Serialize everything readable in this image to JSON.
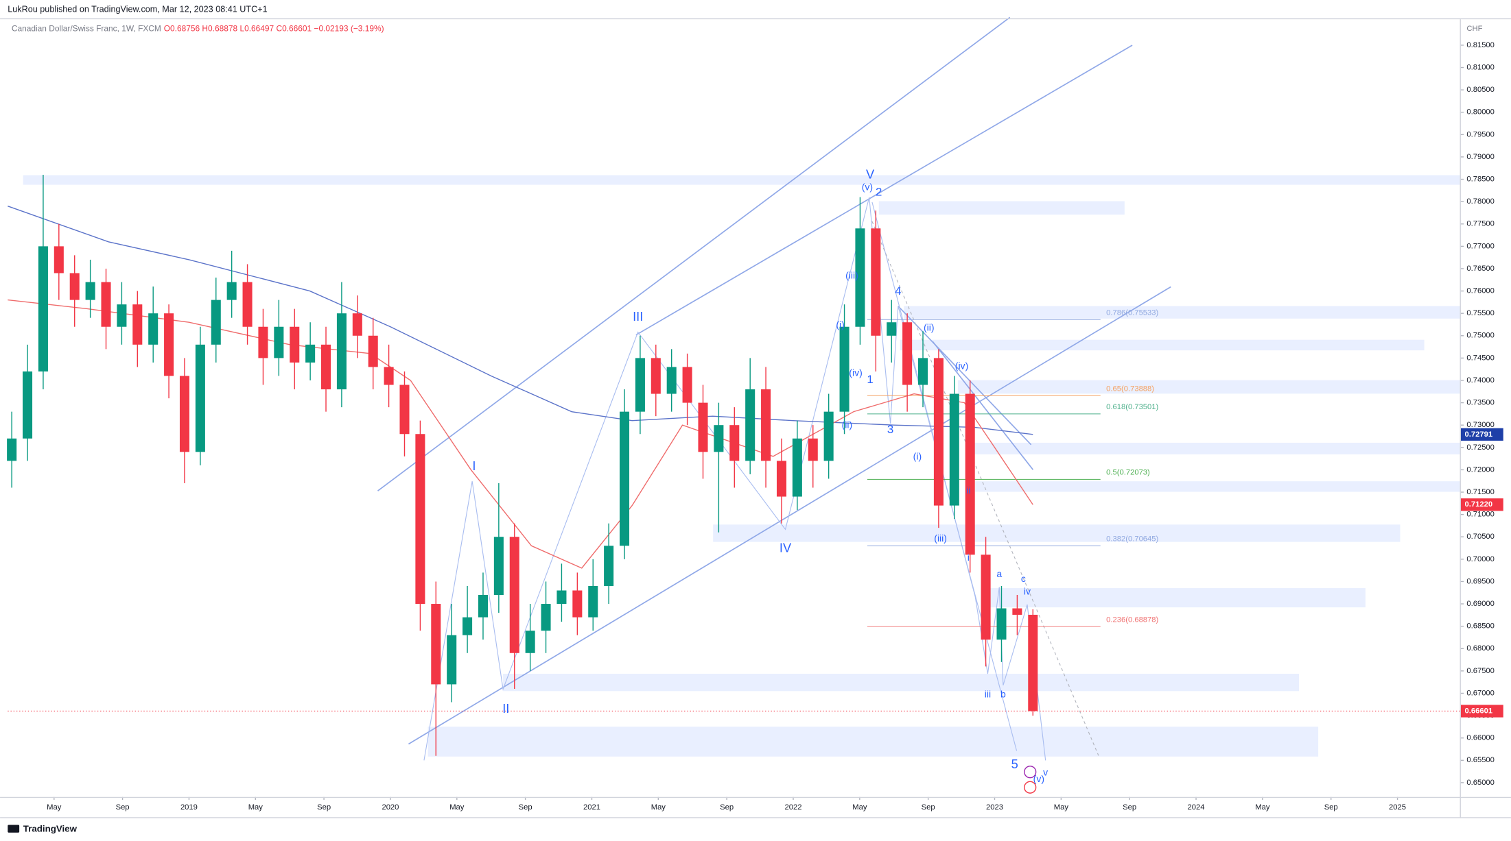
{
  "header": {
    "publisher": "LukRou published on TradingView.com, Mar 12, 2023 08:41 UTC+1",
    "symbol": "Canadian Dollar/Swiss Franc, 1W, FXCM",
    "ohlc": "O0.68756 H0.68878 L0.66497 C0.66601 −0.02193 (−3.19%)",
    "branding": "TradingView"
  },
  "chart_data": {
    "type": "candlestick",
    "up_color": "#089981",
    "down_color": "#f23645",
    "y_unit": "CHF",
    "x": [
      2018.12,
      2018.198,
      2018.276,
      2018.354,
      2018.432,
      2018.51,
      2018.588,
      2018.666,
      2018.744,
      2018.822,
      2018.9,
      2018.978,
      2019.056,
      2019.134,
      2019.212,
      2019.29,
      2019.368,
      2019.446,
      2019.524,
      2019.602,
      2019.68,
      2019.758,
      2019.836,
      2019.914,
      2019.992,
      2020.07,
      2020.148,
      2020.226,
      2020.304,
      2020.382,
      2020.46,
      2020.538,
      2020.616,
      2020.694,
      2020.772,
      2020.85,
      2020.928,
      2021.006,
      2021.084,
      2021.162,
      2021.24,
      2021.318,
      2021.396,
      2021.474,
      2021.552,
      2021.63,
      2021.708,
      2021.786,
      2021.864,
      2021.942,
      2022.02,
      2022.098,
      2022.176,
      2022.254,
      2022.332,
      2022.41,
      2022.488,
      2022.566,
      2022.644,
      2022.722,
      2022.8,
      2022.878,
      2022.956,
      2023.034,
      2023.112,
      2023.19
    ],
    "open": [
      0.722,
      0.727,
      0.742,
      0.77,
      0.764,
      0.758,
      0.762,
      0.752,
      0.757,
      0.748,
      0.755,
      0.741,
      0.724,
      0.748,
      0.758,
      0.762,
      0.752,
      0.745,
      0.752,
      0.744,
      0.748,
      0.738,
      0.755,
      0.75,
      0.743,
      0.739,
      0.728,
      0.69,
      0.672,
      0.683,
      0.687,
      0.692,
      0.705,
      0.679,
      0.684,
      0.69,
      0.693,
      0.687,
      0.694,
      0.703,
      0.733,
      0.745,
      0.737,
      0.743,
      0.735,
      0.724,
      0.73,
      0.722,
      0.738,
      0.722,
      0.714,
      0.727,
      0.722,
      0.733,
      0.752,
      0.774,
      0.75,
      0.753,
      0.739,
      0.745,
      0.712,
      0.737,
      0.701,
      0.682,
      0.689,
      0.68756
    ],
    "high": [
      0.733,
      0.748,
      0.786,
      0.775,
      0.768,
      0.767,
      0.765,
      0.762,
      0.76,
      0.761,
      0.757,
      0.745,
      0.752,
      0.763,
      0.769,
      0.766,
      0.756,
      0.758,
      0.756,
      0.753,
      0.752,
      0.762,
      0.759,
      0.754,
      0.748,
      0.742,
      0.731,
      0.695,
      0.69,
      0.694,
      0.697,
      0.717,
      0.708,
      0.69,
      0.695,
      0.699,
      0.697,
      0.7,
      0.708,
      0.738,
      0.75,
      0.748,
      0.747,
      0.746,
      0.739,
      0.735,
      0.734,
      0.745,
      0.743,
      0.727,
      0.731,
      0.73,
      0.737,
      0.757,
      0.781,
      0.778,
      0.758,
      0.755,
      0.751,
      0.747,
      0.741,
      0.74,
      0.705,
      0.694,
      0.692,
      0.68878
    ],
    "low": [
      0.716,
      0.722,
      0.738,
      0.758,
      0.752,
      0.754,
      0.747,
      0.748,
      0.743,
      0.744,
      0.736,
      0.717,
      0.721,
      0.744,
      0.754,
      0.748,
      0.739,
      0.741,
      0.738,
      0.74,
      0.733,
      0.734,
      0.745,
      0.738,
      0.734,
      0.723,
      0.684,
      0.656,
      0.668,
      0.679,
      0.682,
      0.688,
      0.671,
      0.675,
      0.679,
      0.686,
      0.683,
      0.684,
      0.69,
      0.7,
      0.728,
      0.732,
      0.733,
      0.73,
      0.718,
      0.706,
      0.716,
      0.719,
      0.716,
      0.708,
      0.711,
      0.716,
      0.718,
      0.728,
      0.748,
      0.742,
      0.744,
      0.733,
      0.734,
      0.707,
      0.709,
      0.697,
      0.676,
      0.677,
      0.683,
      0.66497
    ],
    "close": [
      0.727,
      0.742,
      0.77,
      0.764,
      0.758,
      0.762,
      0.752,
      0.757,
      0.748,
      0.755,
      0.741,
      0.724,
      0.748,
      0.758,
      0.762,
      0.752,
      0.745,
      0.752,
      0.744,
      0.748,
      0.738,
      0.755,
      0.75,
      0.743,
      0.739,
      0.728,
      0.69,
      0.672,
      0.683,
      0.687,
      0.692,
      0.705,
      0.679,
      0.684,
      0.69,
      0.693,
      0.687,
      0.694,
      0.703,
      0.733,
      0.745,
      0.737,
      0.743,
      0.735,
      0.724,
      0.73,
      0.722,
      0.738,
      0.722,
      0.714,
      0.727,
      0.722,
      0.733,
      0.752,
      0.774,
      0.75,
      0.753,
      0.739,
      0.745,
      0.712,
      0.737,
      0.701,
      0.682,
      0.689,
      0.68756,
      0.66601
    ],
    "lines": [
      {
        "color": "#5b73c9",
        "x": [
          2018.1,
          2018.6,
          2019.0,
          2019.6,
          2020.0,
          2020.5,
          2020.9,
          2021.2,
          2021.6,
          2022.0,
          2022.5,
          2022.9,
          2023.19
        ],
        "values": [
          0.779,
          0.771,
          0.767,
          0.76,
          0.752,
          0.741,
          0.733,
          0.731,
          0.732,
          0.731,
          0.73,
          0.7295,
          0.72791
        ]
      },
      {
        "color": "#ef6c6c",
        "x": [
          2018.1,
          2018.5,
          2019.0,
          2019.5,
          2019.9,
          2020.1,
          2020.4,
          2020.7,
          2020.95,
          2021.2,
          2021.45,
          2021.9,
          2022.3,
          2022.6,
          2022.85,
          2023.0,
          2023.19
        ],
        "values": [
          0.758,
          0.756,
          0.753,
          0.748,
          0.746,
          0.74,
          0.72,
          0.703,
          0.698,
          0.712,
          0.73,
          0.723,
          0.733,
          0.737,
          0.735,
          0.725,
          0.7122
        ]
      }
    ],
    "price_markers": [
      {
        "value": 0.72791,
        "color": "#1e3fa8"
      },
      {
        "value": 0.7122,
        "label": "0.71220",
        "color": "#f23645"
      },
      {
        "value": 0.66601,
        "color": "#f23645"
      }
    ],
    "xlim": [
      2018.1,
      2025.31
    ],
    "xticks": [
      {
        "value": 2018.33,
        "label": "May"
      },
      {
        "value": 2018.67,
        "label": "Sep"
      },
      2019,
      {
        "value": 2019.33,
        "label": "May"
      },
      {
        "value": 2019.67,
        "label": "Sep"
      },
      2020,
      {
        "value": 2020.33,
        "label": "May"
      },
      {
        "value": 2020.67,
        "label": "Sep"
      },
      2021,
      {
        "value": 2021.33,
        "label": "May"
      },
      {
        "value": 2021.67,
        "label": "Sep"
      },
      2022,
      {
        "value": 2022.33,
        "label": "May"
      },
      {
        "value": 2022.67,
        "label": "Sep"
      },
      2023,
      {
        "value": 2023.33,
        "label": "May"
      },
      {
        "value": 2023.67,
        "label": "Sep"
      },
      2024,
      {
        "value": 2024.33,
        "label": "May"
      },
      {
        "value": 2024.67,
        "label": "Sep"
      },
      2025
    ],
    "ylim": [
      0.6468,
      0.8208
    ],
    "yticks": [
      {
        "value": 0.65,
        "label": "0.65000"
      },
      {
        "value": 0.655,
        "label": "0.65500"
      },
      {
        "value": 0.66,
        "label": "0.66000"
      },
      {
        "value": 0.665,
        "label": "0.66500"
      },
      {
        "value": 0.67,
        "label": "0.67000"
      },
      {
        "value": 0.675,
        "label": "0.67500"
      },
      {
        "value": 0.68,
        "label": "0.68000"
      },
      {
        "value": 0.685,
        "label": "0.68500"
      },
      {
        "value": 0.69,
        "label": "0.69000"
      },
      {
        "value": 0.695,
        "label": "0.69500"
      },
      {
        "value": 0.7,
        "label": "0.70000"
      },
      {
        "value": 0.705,
        "label": "0.70500"
      },
      {
        "value": 0.71,
        "label": "0.71000"
      },
      {
        "value": 0.715,
        "label": "0.71500"
      },
      {
        "value": 0.72,
        "label": "0.72000"
      },
      {
        "value": 0.725,
        "label": "0.72500"
      },
      {
        "value": 0.73,
        "label": "0.73000"
      },
      {
        "value": 0.735,
        "label": "0.73500"
      },
      {
        "value": 0.74,
        "label": "0.74000"
      },
      {
        "value": 0.745,
        "label": "0.74500"
      },
      {
        "value": 0.75,
        "label": "0.75000"
      },
      {
        "value": 0.755,
        "label": "0.75500"
      },
      {
        "value": 0.76,
        "label": "0.76000"
      },
      {
        "value": 0.765,
        "label": "0.76500"
      },
      {
        "value": 0.77,
        "label": "0.77000"
      },
      {
        "value": 0.775,
        "label": "0.77500"
      },
      {
        "value": 0.78,
        "label": "0.78000"
      },
      {
        "value": 0.785,
        "label": "0.78500"
      },
      {
        "value": 0.79,
        "label": "0.79000"
      },
      {
        "value": 0.795,
        "label": "0.79500"
      },
      {
        "value": 0.8,
        "label": "0.80000"
      },
      {
        "value": 0.805,
        "label": "0.80500"
      },
      {
        "value": 0.81,
        "label": "0.81000"
      },
      {
        "value": 0.815,
        "label": "0.81500"
      }
    ],
    "wave_labels": [
      "I",
      "II",
      "III",
      "IV",
      "V",
      "(v)",
      "2",
      "(iii)",
      "(i)",
      "(iv)",
      "1",
      "(ii)",
      "4",
      "3",
      "(ii)",
      "(iv)",
      "(i)",
      "ii",
      "(iii)",
      "i",
      "a",
      "c",
      "iv",
      "iii",
      "b",
      "5",
      "v",
      "(v)"
    ],
    "fib_labels": [
      "0.786(0.75533)",
      "0.65(0.73888)",
      "0.618(0.73501)",
      "0.5(0.72073)",
      "0.382(0.70645)",
      "0.236(0.68878)"
    ]
  }
}
